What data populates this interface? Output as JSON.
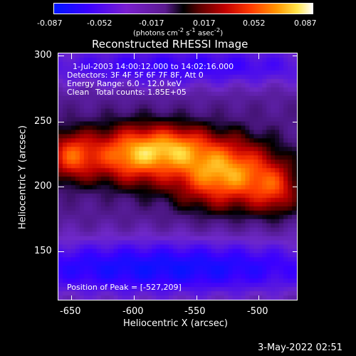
{
  "colorbar": {
    "tick_labels": [
      "-0.087",
      "-0.052",
      "-0.017",
      "0.017",
      "0.052",
      "0.087"
    ],
    "unit_label_html": "(photons cm<sup>-2</sup> s<sup>-1</sup> asec<sup>-2</sup>)"
  },
  "title": "Reconstructed RHESSI Image",
  "info": {
    "time_range": "1-Jul-2003 14:00:12.000 to 14:02:16.000",
    "detectors": "Detectors: 3F 4F 5F 6F 7F 8F, Att 0",
    "energy": "Energy Range: 6.0 - 12.0 keV",
    "clean": "Clean",
    "total_counts": "Total counts: 1.85E+05",
    "peak": "Position of Peak = [-527,209]"
  },
  "timestamp": "3-May-2022 02:51",
  "chart_data": {
    "type": "heatmap",
    "title": "Reconstructed RHESSI Image",
    "xlabel": "Heliocentric X (arcsec)",
    "ylabel": "Heliocentric Y (arcsec)",
    "xlim": [
      -660,
      -468
    ],
    "ylim": [
      110,
      302
    ],
    "x_ticks": [
      -650,
      -600,
      -550,
      -500
    ],
    "y_ticks": [
      150,
      200,
      250,
      300
    ],
    "value_range": [
      -0.087,
      0.087
    ],
    "peak": [
      -527,
      209
    ],
    "colormap": "blue-purple-black-red-yellow-white",
    "sources": [
      {
        "x": -527,
        "y": 209,
        "sx": 30,
        "sy": 19,
        "amp": 0.087
      },
      {
        "x": -602,
        "y": 223,
        "sx": 24,
        "sy": 16,
        "amp": 0.078
      },
      {
        "x": -650,
        "y": 222,
        "sx": 14,
        "sy": 14,
        "amp": 0.06
      },
      {
        "x": -565,
        "y": 230,
        "sx": 20,
        "sy": 12,
        "amp": 0.045
      },
      {
        "x": -485,
        "y": 195,
        "sx": 14,
        "sy": 14,
        "amp": 0.04
      }
    ],
    "negative_regions": [
      {
        "x": -575,
        "y": 135,
        "sx": 120,
        "sy": 16,
        "amp": -0.06
      },
      {
        "x": -560,
        "y": 292,
        "sx": 110,
        "sy": 12,
        "amp": -0.045
      }
    ]
  }
}
